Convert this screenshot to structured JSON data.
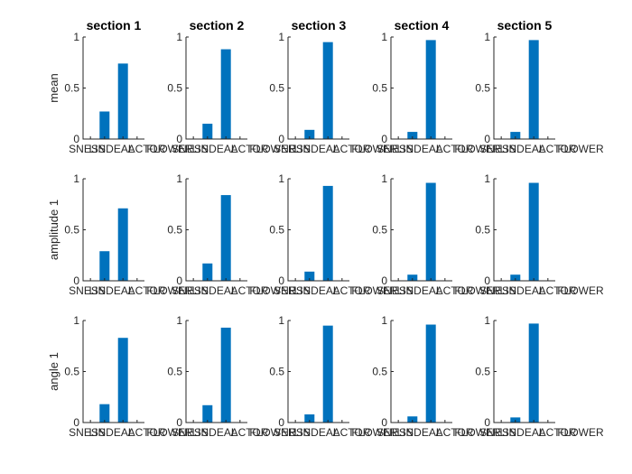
{
  "chart_data": {
    "type": "bar",
    "layout": "3x5 grid of small-multiple bar charts",
    "bar_color": "#0072BD",
    "categories": [
      "SNESS",
      "LINDEAL",
      "ACTOR",
      "FLOWER"
    ],
    "column_titles": [
      "section 1",
      "section 2",
      "section 3",
      "section 4",
      "section 5"
    ],
    "row_labels": [
      "mean",
      "amplitude 1",
      "angle 1"
    ],
    "ylim": [
      0,
      1
    ],
    "yticks": [
      "0",
      "0.5",
      "1"
    ],
    "values": [
      [
        [
          0,
          0.27,
          0.74,
          0
        ],
        [
          0,
          0.15,
          0.88,
          0
        ],
        [
          0,
          0.09,
          0.95,
          0
        ],
        [
          0,
          0.07,
          0.97,
          0
        ],
        [
          0,
          0.07,
          0.97,
          0
        ]
      ],
      [
        [
          0,
          0.29,
          0.71,
          0
        ],
        [
          0,
          0.17,
          0.84,
          0
        ],
        [
          0,
          0.09,
          0.93,
          0
        ],
        [
          0,
          0.06,
          0.96,
          0
        ],
        [
          0,
          0.06,
          0.96,
          0
        ]
      ],
      [
        [
          0,
          0.18,
          0.83,
          0
        ],
        [
          0,
          0.17,
          0.93,
          0
        ],
        [
          0,
          0.08,
          0.95,
          0
        ],
        [
          0,
          0.06,
          0.96,
          0
        ],
        [
          0,
          0.05,
          0.97,
          0
        ]
      ]
    ]
  }
}
